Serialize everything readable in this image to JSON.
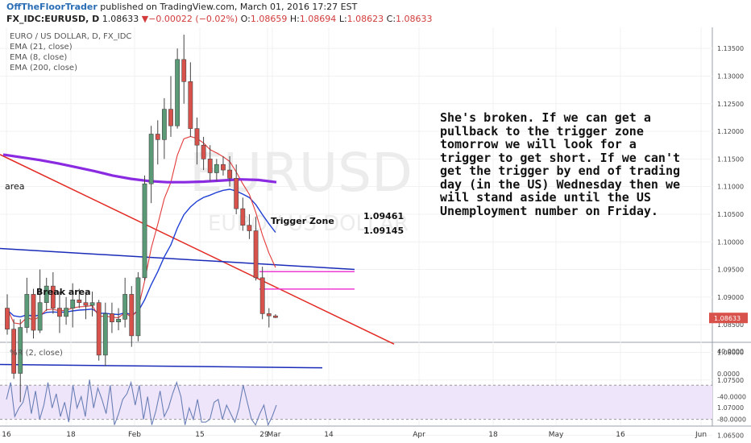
{
  "header": {
    "author": "OffTheFloorTrader",
    "published_text": " published on TradingView.com, March 01, 2016 17:27 EST",
    "symbol": "FX_IDC:EURUSD, D",
    "last": "1.08633",
    "change_arrow": "▼",
    "change": "−0.00022 (−0.02%)",
    "o_label": "O:",
    "o_value": "1.08659",
    "h_label": "H:",
    "h_value": "1.08694",
    "l_label": "L:",
    "l_value": "1.08623",
    "c_label": "C:",
    "c_value": "1.08633"
  },
  "legend": {
    "title": "EURO / US DOLLAR, D, FX_IDC",
    "ema21": "EMA (21, close)",
    "ema8": "EMA (8, close)",
    "ema200": "EMA (200, close)"
  },
  "watermark": {
    "big": "EURUSD",
    "small": "EURO / US DOLLAR"
  },
  "annotations": {
    "area": "area",
    "break_area": "Break area",
    "trigger_zone": "Trigger Zone",
    "level_upper": "1.09461",
    "level_lower": "1.09145",
    "commentary": "She's broken.  If we can get a pullback to the trigger zone tomorrow we will look for a trigger to get short.  If we can't get the trigger by end of trading day (in the US) Wednesday then we will stand aside until the US Unemployment number on Friday."
  },
  "price_axis": {
    "ticks": [
      "1.13500",
      "1.13000",
      "1.12500",
      "1.12000",
      "1.11500",
      "1.11000",
      "1.10500",
      "1.10000",
      "1.09500",
      "1.09000",
      "1.08500",
      "1.08000",
      "1.07500",
      "1.07000",
      "1.06500"
    ],
    "current_label": "1.08633"
  },
  "indicator": {
    "title": "%R (2, close)",
    "ticks": [
      "40.0000",
      "0.0000",
      "-40.0000",
      "-80.0000"
    ]
  },
  "time_axis": {
    "labels": [
      "16",
      "18",
      "Feb",
      "15",
      "29",
      "Mar",
      "14",
      "Apr",
      "18",
      "May",
      "16",
      "Jun"
    ]
  },
  "colors": {
    "up_candle": "#5a9a76",
    "down_candle": "#d8524b",
    "ema21": "#1f3fd4",
    "ema8": "#e33a3a",
    "ema200": "#8a2be2",
    "trendline_red": "#e22a22",
    "blue_lines": "#1a2bb8",
    "trigger_lines": "#ee3cd2",
    "wpr_line": "#6a7fb5",
    "wpr_band": "#eee5fb",
    "price_badge": "#d8524b"
  },
  "chart_data": [
    {
      "type": "candlestick",
      "title": "EURO / US DOLLAR, D, FX_IDC",
      "ylim": [
        1.0635,
        1.1375
      ],
      "series": [
        {
          "name": "EURUSD",
          "ohlc": [
            [
              1.088,
              1.0905,
              1.0832,
              1.0842
            ],
            [
              1.0842,
              1.086,
              1.0752,
              1.0762
            ],
            [
              1.0762,
              1.086,
              1.071,
              1.0845
            ],
            [
              1.0845,
              1.0935,
              1.0835,
              1.0905
            ],
            [
              1.0905,
              1.0915,
              1.0825,
              1.084
            ],
            [
              1.084,
              1.095,
              1.0835,
              1.089
            ],
            [
              1.089,
              1.0935,
              1.0875,
              1.092
            ],
            [
              1.092,
              1.0945,
              1.087,
              1.088
            ],
            [
              1.088,
              1.091,
              1.0835,
              1.0865
            ],
            [
              1.0865,
              1.09,
              1.085,
              1.088
            ],
            [
              1.088,
              1.0925,
              1.0845,
              1.0895
            ],
            [
              1.0895,
              1.0915,
              1.088,
              1.089
            ],
            [
              1.089,
              1.0905,
              1.086,
              1.0885
            ],
            [
              1.0885,
              1.091,
              1.0865,
              1.089
            ],
            [
              1.089,
              1.0895,
              1.0785,
              1.0795
            ],
            [
              1.0795,
              1.089,
              1.0775,
              1.087
            ],
            [
              1.087,
              1.089,
              1.0835,
              1.0855
            ],
            [
              1.0855,
              1.088,
              1.084,
              1.086
            ],
            [
              1.086,
              1.0935,
              1.0845,
              1.0905
            ],
            [
              1.0905,
              1.092,
              1.081,
              1.083
            ],
            [
              1.083,
              1.0945,
              1.082,
              1.0935
            ],
            [
              1.0935,
              1.112,
              1.093,
              1.1105
            ],
            [
              1.1105,
              1.121,
              1.107,
              1.1195
            ],
            [
              1.1195,
              1.122,
              1.114,
              1.1185
            ],
            [
              1.1185,
              1.126,
              1.115,
              1.124
            ],
            [
              1.124,
              1.13,
              1.119,
              1.121
            ],
            [
              1.121,
              1.135,
              1.1205,
              1.133
            ],
            [
              1.133,
              1.1375,
              1.125,
              1.129
            ],
            [
              1.129,
              1.1325,
              1.119,
              1.1205
            ],
            [
              1.1205,
              1.1225,
              1.114,
              1.1175
            ],
            [
              1.1175,
              1.119,
              1.113,
              1.115
            ],
            [
              1.115,
              1.1175,
              1.111,
              1.1125
            ],
            [
              1.1125,
              1.115,
              1.111,
              1.114
            ],
            [
              1.114,
              1.1155,
              1.112,
              1.113
            ],
            [
              1.113,
              1.1155,
              1.11,
              1.1115
            ],
            [
              1.1115,
              1.114,
              1.105,
              1.106
            ],
            [
              1.106,
              1.108,
              1.102,
              1.103
            ],
            [
              1.103,
              1.105,
              1.1005,
              1.102
            ],
            [
              1.102,
              1.1045,
              1.093,
              1.0935
            ],
            [
              1.0935,
              1.0955,
              1.086,
              1.087
            ],
            [
              1.087,
              1.088,
              1.0845,
              1.0866
            ],
            [
              1.0866,
              1.0869,
              1.0862,
              1.0863
            ]
          ]
        },
        {
          "name": "EMA (8, close)"
        },
        {
          "name": "EMA (21, close)"
        },
        {
          "name": "EMA (200, close)",
          "values": [
            1.1158,
            1.1153,
            1.1148,
            1.1142,
            1.1135,
            1.1128,
            1.112,
            1.1114,
            1.111,
            1.1108,
            1.1108,
            1.1109,
            1.1111,
            1.1113,
            1.1112,
            1.1108
          ]
        }
      ],
      "levels": [
        1.09461,
        1.09145
      ]
    },
    {
      "type": "line",
      "title": "%R (2, close)",
      "ylim": [
        -95,
        40
      ],
      "ticks": [
        40,
        0,
        -40,
        -80
      ],
      "band": [
        -20,
        -80
      ],
      "values": [
        -45,
        -15,
        -75,
        -60,
        -50,
        -20,
        -70,
        -30,
        -80,
        -55,
        -15,
        -60,
        -35,
        -75,
        -50,
        -85,
        -20,
        -60,
        -40,
        -75,
        -10,
        -60,
        -25,
        -45,
        -70,
        -20,
        -90,
        -70,
        -45,
        -35,
        -15,
        -55,
        -20,
        -80,
        -40,
        -90,
        -65,
        -30,
        -75,
        -60,
        -35,
        -15,
        -40,
        -90,
        -60,
        -80,
        -45,
        -85,
        -85,
        -80,
        -50,
        -45,
        -80,
        -55,
        -70,
        -85,
        -60,
        -20,
        -50,
        -80,
        -90,
        -70,
        -55,
        -90,
        -75,
        -55
      ]
    }
  ]
}
